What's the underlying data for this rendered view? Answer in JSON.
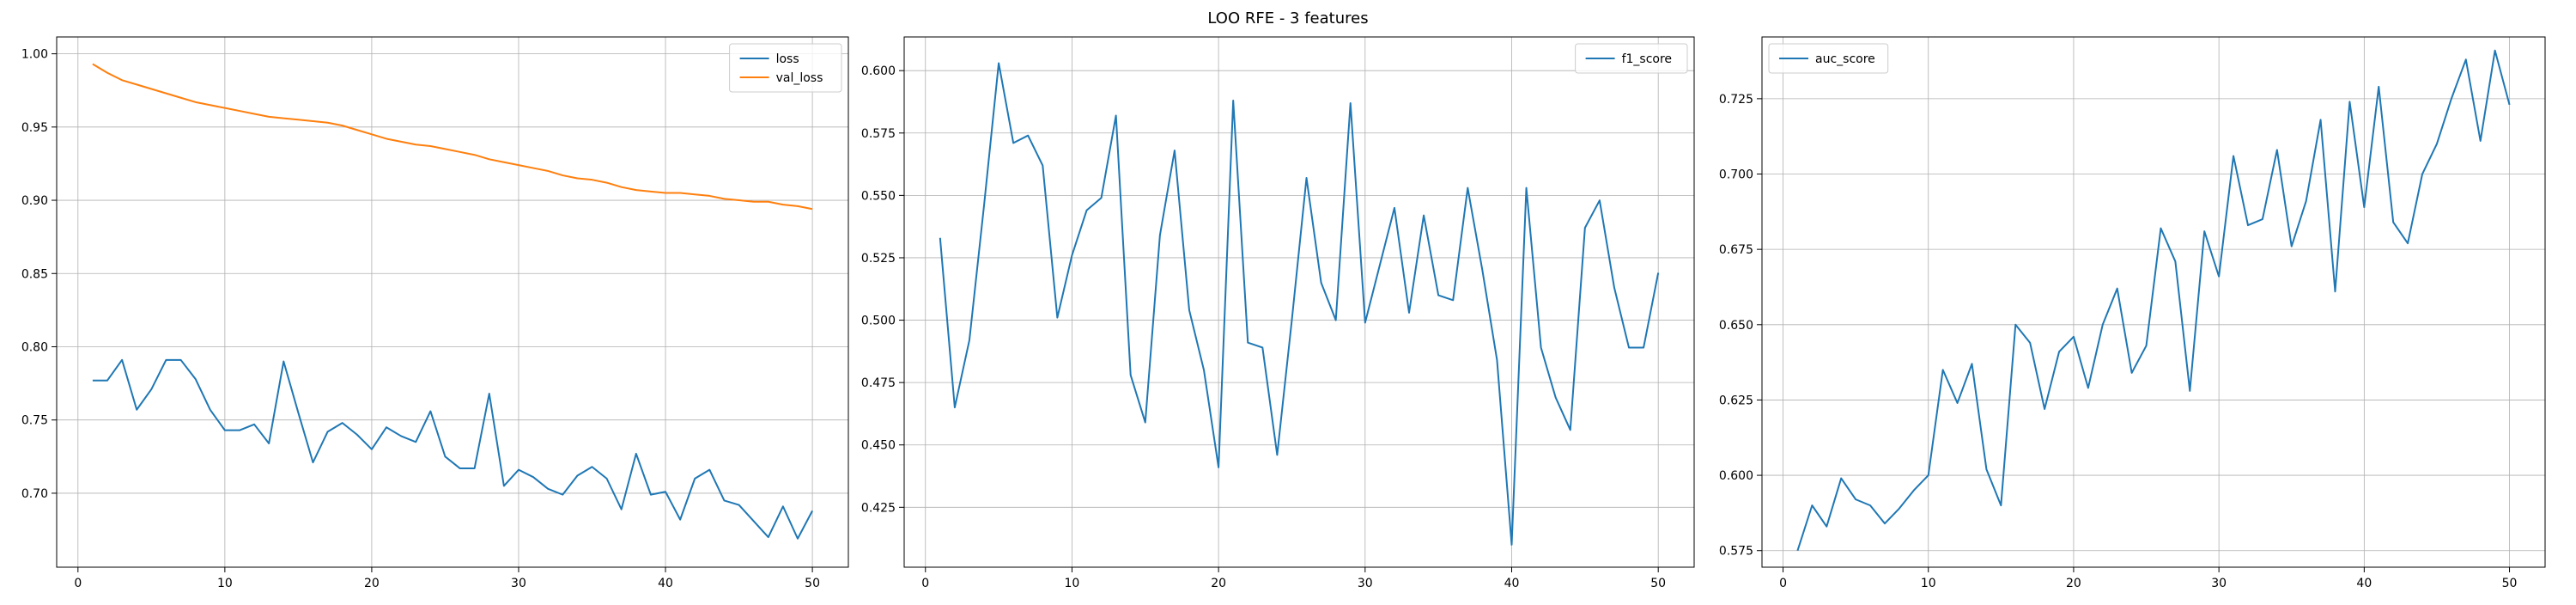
{
  "figure": {
    "title": "LOO RFE - 3 features"
  },
  "chart_data": [
    {
      "type": "line",
      "legend_position": "upper right",
      "grid": true,
      "xlim": [
        -1.45,
        52.45
      ],
      "ylim": [
        0.6495,
        1.0115
      ],
      "xticks": [
        0,
        10,
        20,
        30,
        40,
        50
      ],
      "yticks": [
        0.7,
        0.75,
        0.8,
        0.85,
        0.9,
        0.95,
        1.0
      ],
      "ytick_format": "2",
      "x": [
        1,
        2,
        3,
        4,
        5,
        6,
        7,
        8,
        9,
        10,
        11,
        12,
        13,
        14,
        15,
        16,
        17,
        18,
        19,
        20,
        21,
        22,
        23,
        24,
        25,
        26,
        27,
        28,
        29,
        30,
        31,
        32,
        33,
        34,
        35,
        36,
        37,
        38,
        39,
        40,
        41,
        42,
        43,
        44,
        45,
        46,
        47,
        48,
        49,
        50
      ],
      "series": [
        {
          "name": "loss",
          "color": "#1f77b4",
          "values": [
            0.777,
            0.777,
            0.791,
            0.757,
            0.771,
            0.791,
            0.791,
            0.778,
            0.757,
            0.743,
            0.743,
            0.747,
            0.734,
            0.79,
            0.755,
            0.721,
            0.742,
            0.748,
            0.74,
            0.73,
            0.745,
            0.739,
            0.735,
            0.756,
            0.725,
            0.717,
            0.717,
            0.768,
            0.705,
            0.716,
            0.711,
            0.703,
            0.699,
            0.712,
            0.718,
            0.71,
            0.689,
            0.727,
            0.699,
            0.701,
            0.682,
            0.71,
            0.716,
            0.695,
            0.692,
            0.681,
            0.67,
            0.691,
            0.669,
            0.688
          ]
        },
        {
          "name": "val_loss",
          "color": "#ff7f0e",
          "values": [
            0.993,
            0.987,
            0.982,
            0.979,
            0.976,
            0.973,
            0.97,
            0.967,
            0.965,
            0.963,
            0.961,
            0.959,
            0.957,
            0.956,
            0.955,
            0.954,
            0.953,
            0.951,
            0.948,
            0.945,
            0.942,
            0.94,
            0.938,
            0.937,
            0.935,
            0.933,
            0.931,
            0.928,
            0.926,
            0.924,
            0.922,
            0.92,
            0.917,
            0.915,
            0.914,
            0.912,
            0.909,
            0.907,
            0.906,
            0.905,
            0.905,
            0.904,
            0.903,
            0.901,
            0.9,
            0.899,
            0.899,
            0.897,
            0.896,
            0.894
          ]
        }
      ]
    },
    {
      "type": "line",
      "legend_position": "upper right",
      "grid": true,
      "xlim": [
        -1.45,
        52.45
      ],
      "ylim": [
        0.401,
        0.6135
      ],
      "xticks": [
        0,
        10,
        20,
        30,
        40,
        50
      ],
      "yticks": [
        0.425,
        0.45,
        0.475,
        0.5,
        0.525,
        0.55,
        0.575,
        0.6
      ],
      "ytick_format": "3",
      "x": [
        1,
        2,
        3,
        4,
        5,
        6,
        7,
        8,
        9,
        10,
        11,
        12,
        13,
        14,
        15,
        16,
        17,
        18,
        19,
        20,
        21,
        22,
        23,
        24,
        25,
        26,
        27,
        28,
        29,
        30,
        31,
        32,
        33,
        34,
        35,
        36,
        37,
        38,
        39,
        40,
        41,
        42,
        43,
        44,
        45,
        46,
        47,
        48,
        49,
        50
      ],
      "series": [
        {
          "name": "f1_score",
          "color": "#1f77b4",
          "values": [
            0.533,
            0.465,
            0.492,
            0.546,
            0.603,
            0.571,
            0.574,
            0.562,
            0.501,
            0.526,
            0.544,
            0.549,
            0.582,
            0.478,
            0.459,
            0.534,
            0.568,
            0.504,
            0.48,
            0.441,
            0.588,
            0.491,
            0.489,
            0.446,
            0.5,
            0.557,
            0.515,
            0.5,
            0.587,
            0.499,
            0.522,
            0.545,
            0.503,
            0.542,
            0.51,
            0.508,
            0.553,
            0.52,
            0.484,
            0.41,
            0.553,
            0.489,
            0.469,
            0.456,
            0.537,
            0.548,
            0.513,
            0.489,
            0.489,
            0.519
          ]
        }
      ]
    },
    {
      "type": "line",
      "legend_position": "upper left",
      "grid": true,
      "xlim": [
        -1.45,
        52.45
      ],
      "ylim": [
        0.5695,
        0.7455
      ],
      "xticks": [
        0,
        10,
        20,
        30,
        40,
        50
      ],
      "yticks": [
        0.575,
        0.6,
        0.625,
        0.65,
        0.675,
        0.7,
        0.725
      ],
      "ytick_format": "3",
      "x": [
        1,
        2,
        3,
        4,
        5,
        6,
        7,
        8,
        9,
        10,
        11,
        12,
        13,
        14,
        15,
        16,
        17,
        18,
        19,
        20,
        21,
        22,
        23,
        24,
        25,
        26,
        27,
        28,
        29,
        30,
        31,
        32,
        33,
        34,
        35,
        36,
        37,
        38,
        39,
        40,
        41,
        42,
        43,
        44,
        45,
        46,
        47,
        48,
        49,
        50
      ],
      "series": [
        {
          "name": "auc_score",
          "color": "#1f77b4",
          "values": [
            0.575,
            0.59,
            0.583,
            0.599,
            0.592,
            0.59,
            0.584,
            0.589,
            0.595,
            0.6,
            0.635,
            0.624,
            0.637,
            0.602,
            0.59,
            0.65,
            0.644,
            0.622,
            0.641,
            0.646,
            0.629,
            0.65,
            0.662,
            0.634,
            0.643,
            0.682,
            0.671,
            0.628,
            0.681,
            0.666,
            0.706,
            0.683,
            0.685,
            0.708,
            0.676,
            0.691,
            0.718,
            0.661,
            0.724,
            0.689,
            0.729,
            0.684,
            0.677,
            0.7,
            0.71,
            0.725,
            0.738,
            0.711,
            0.741,
            0.723
          ]
        }
      ]
    }
  ]
}
